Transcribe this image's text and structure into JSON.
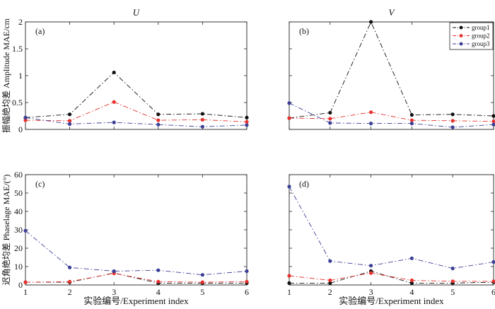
{
  "chart_data": [
    {
      "type": "line",
      "column_title": "U",
      "panel_label": "(a)",
      "ylabel": "振幅绝均差 Amplitude MAE/cm",
      "xlabel": "",
      "x": [
        1,
        2,
        3,
        4,
        5,
        6
      ],
      "xlim": [
        1,
        6
      ],
      "ylim": [
        0,
        2
      ],
      "yticks": [
        "0",
        "0.5",
        "1",
        "1.5",
        "2"
      ],
      "xticks": [],
      "legend": false,
      "series": [
        {
          "key": "group1",
          "color": "#111111",
          "values": [
            0.22,
            0.28,
            1.06,
            0.28,
            0.29,
            0.22
          ]
        },
        {
          "key": "group2",
          "color": "#e8312f",
          "values": [
            0.17,
            0.16,
            0.51,
            0.17,
            0.18,
            0.14
          ]
        },
        {
          "key": "group3",
          "color": "#3b3f96",
          "values": [
            0.22,
            0.1,
            0.13,
            0.09,
            0.05,
            0.08
          ]
        }
      ]
    },
    {
      "type": "line",
      "column_title": "V",
      "panel_label": "(b)",
      "ylabel": "",
      "xlabel": "",
      "x": [
        1,
        2,
        3,
        4,
        5,
        6
      ],
      "xlim": [
        1,
        6
      ],
      "ylim": [
        0,
        2
      ],
      "yticks": [],
      "xticks": [],
      "legend": true,
      "legend_position": "top-right",
      "series": [
        {
          "key": "group1",
          "name": "group1",
          "color": "#111111",
          "values": [
            0.21,
            0.31,
            2.0,
            0.27,
            0.28,
            0.25
          ]
        },
        {
          "key": "group2",
          "name": "group2",
          "color": "#e8312f",
          "values": [
            0.21,
            0.2,
            0.32,
            0.17,
            0.16,
            0.15
          ]
        },
        {
          "key": "group3",
          "name": "group3",
          "color": "#3b3f96",
          "values": [
            0.49,
            0.12,
            0.11,
            0.11,
            0.04,
            0.09
          ]
        }
      ]
    },
    {
      "type": "line",
      "column_title": "",
      "panel_label": "(c)",
      "ylabel": "迟角绝均差 Phaselage MAE/(°)",
      "xlabel": "实验编号/Experiment index",
      "x": [
        1,
        2,
        3,
        4,
        5,
        6
      ],
      "xlim": [
        1,
        6
      ],
      "ylim": [
        0,
        60
      ],
      "yticks": [
        "0",
        "10",
        "20",
        "30",
        "40",
        "50",
        "60"
      ],
      "xticks": [
        "1",
        "2",
        "3",
        "4",
        "5",
        "6"
      ],
      "legend": false,
      "series": [
        {
          "key": "group1",
          "color": "#111111",
          "values": [
            1.5,
            1.5,
            6.5,
            1.0,
            1.0,
            1.0
          ]
        },
        {
          "key": "group2",
          "color": "#e8312f",
          "values": [
            1.5,
            1.8,
            6.3,
            1.8,
            1.5,
            1.8
          ]
        },
        {
          "key": "group3",
          "color": "#3b3f96",
          "values": [
            29.5,
            9.5,
            7.5,
            8.0,
            5.5,
            7.5
          ]
        }
      ]
    },
    {
      "type": "line",
      "column_title": "",
      "panel_label": "(d)",
      "ylabel": "",
      "xlabel": "实验编号/Experiment index",
      "x": [
        1,
        2,
        3,
        4,
        5,
        6
      ],
      "xlim": [
        1,
        6
      ],
      "ylim": [
        0,
        60
      ],
      "yticks": [],
      "xticks": [
        "1",
        "2",
        "3",
        "4",
        "5",
        "6"
      ],
      "legend": false,
      "series": [
        {
          "key": "group1",
          "color": "#111111",
          "values": [
            1.0,
            1.0,
            7.5,
            1.0,
            1.0,
            1.5
          ]
        },
        {
          "key": "group2",
          "color": "#e8312f",
          "values": [
            5.0,
            2.5,
            6.5,
            2.5,
            2.0,
            2.0
          ]
        },
        {
          "key": "group3",
          "color": "#3b3f96",
          "values": [
            53.5,
            13.0,
            10.5,
            14.5,
            9.0,
            12.5
          ]
        }
      ]
    }
  ]
}
